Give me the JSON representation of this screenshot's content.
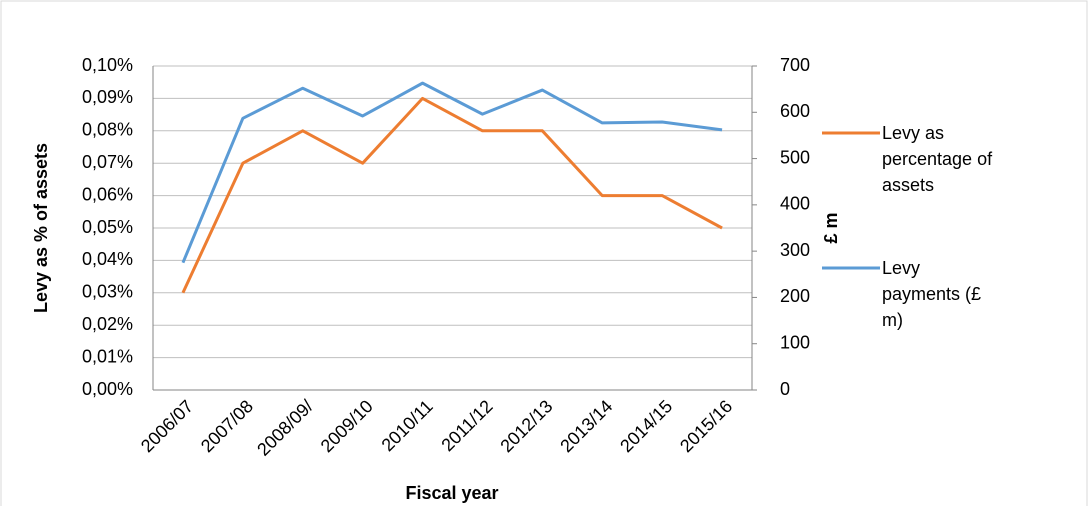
{
  "chart_data": {
    "type": "line",
    "categories": [
      "2006/07",
      "2007/08",
      "2008/09/",
      "2009/10",
      "2010/11",
      "2011/12",
      "2012/13",
      "2013/14",
      "2014/15",
      "2015/16"
    ],
    "series": [
      {
        "name": "Levy as percentage of assets",
        "color": "#ed7d31",
        "values": [
          0.03,
          0.07,
          0.08,
          0.07,
          0.09,
          0.08,
          0.08,
          0.06,
          0.06,
          0.05
        ]
      },
      {
        "name": "Levy payments (£ m)",
        "color": "#5b9bd5",
        "axis": "y2",
        "values": [
          275,
          587,
          652,
          592,
          663,
          596,
          648,
          577,
          579,
          562
        ]
      }
    ],
    "ylabel": "Levy as % of assets",
    "y2label": "£ m",
    "xlabel": "Fiscal year",
    "ylim": [
      0,
      0.1
    ],
    "yticks": [
      {
        "value": 0,
        "label": "0,00%"
      },
      {
        "value": 0.01,
        "label": "0,01%"
      },
      {
        "value": 0.02,
        "label": "0,02%"
      },
      {
        "value": 0.03,
        "label": "0,03%"
      },
      {
        "value": 0.04,
        "label": "0,04%"
      },
      {
        "value": 0.05,
        "label": "0,05%"
      },
      {
        "value": 0.06,
        "label": "0,06%"
      },
      {
        "value": 0.07,
        "label": "0,07%"
      },
      {
        "value": 0.08,
        "label": "0,08%"
      },
      {
        "value": 0.09,
        "label": "0,09%"
      },
      {
        "value": 0.1,
        "label": "0,10%"
      }
    ],
    "y2lim": [
      0,
      700
    ],
    "y2ticks": [
      0,
      100,
      200,
      300,
      400,
      500,
      600,
      700
    ],
    "grid": true,
    "legend": "right"
  }
}
